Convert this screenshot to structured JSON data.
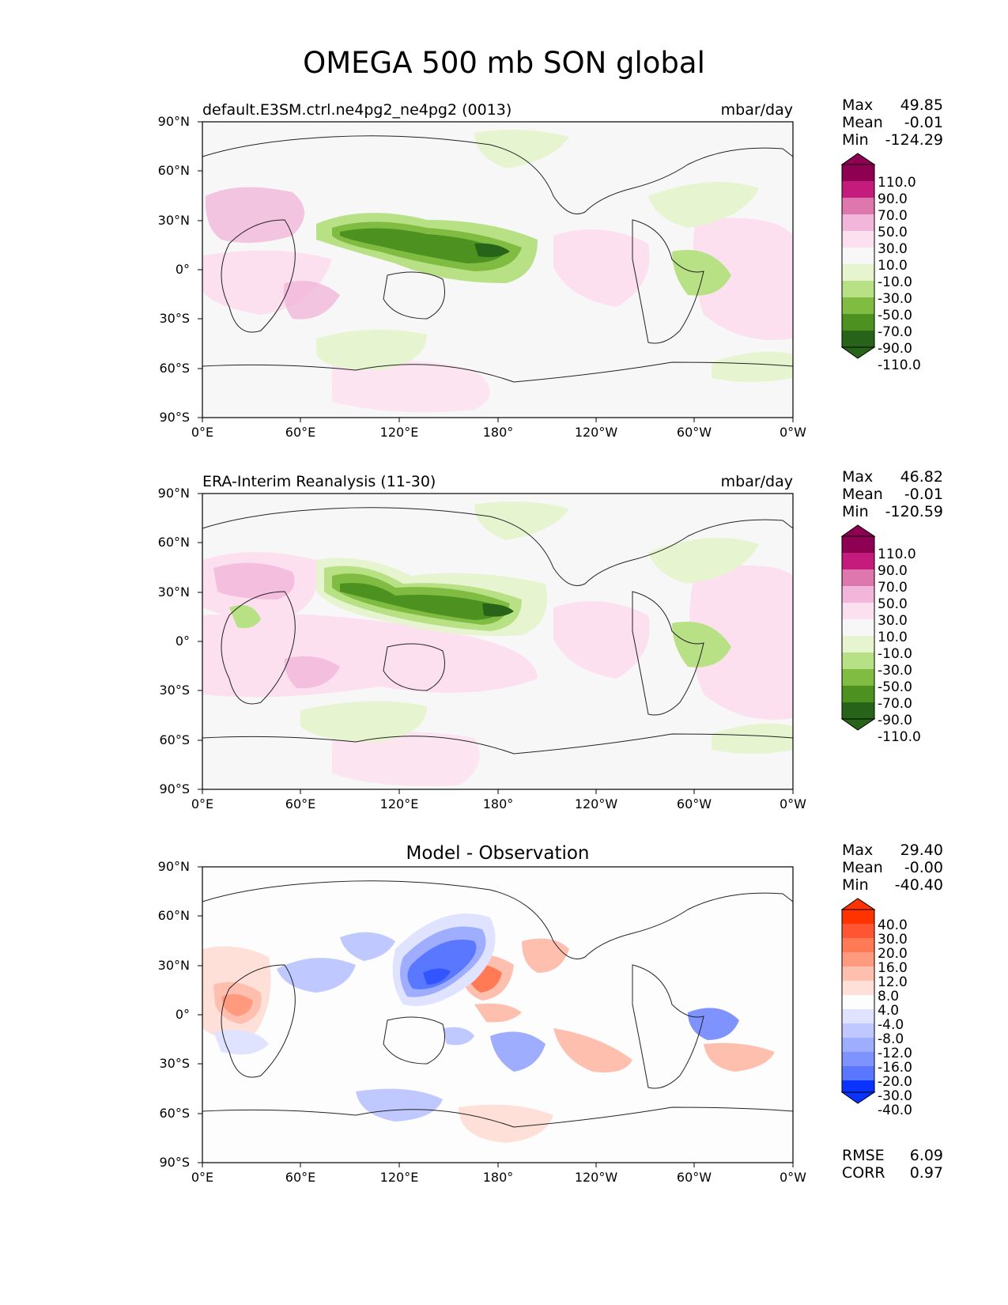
{
  "title": "OMEGA 500 mb SON global",
  "lat_ticks": [
    "90°N",
    "60°N",
    "30°N",
    "0°",
    "30°S",
    "60°S",
    "90°S"
  ],
  "lon_ticks": [
    "0°E",
    "60°E",
    "120°E",
    "180°",
    "120°W",
    "60°W",
    "0°W"
  ],
  "panels": [
    {
      "label_left": "default.E3SM.ctrl.ne4pg2_ne4pg2 (0013)",
      "label_right": "mbar/day",
      "label_center": "",
      "stats": [
        {
          "label": "Max",
          "value": "49.85"
        },
        {
          "label": "Mean",
          "value": "-0.01"
        },
        {
          "label": "Min",
          "value": "-124.29"
        }
      ],
      "colorbar": {
        "labels": [
          "110.0",
          "90.0",
          "70.0",
          "50.0",
          "30.0",
          "10.0",
          "-10.0",
          "-30.0",
          "-50.0",
          "-70.0",
          "-90.0",
          "-110.0"
        ],
        "colors": [
          "#8e0152",
          "#c51b7d",
          "#de77ae",
          "#f1b6da",
          "#fde0ef",
          "#f7f7f7",
          "#e6f5d0",
          "#b8e186",
          "#7fbc41",
          "#4d9221",
          "#276419"
        ]
      }
    },
    {
      "label_left": "ERA-Interim Reanalysis (11-30)",
      "label_right": "mbar/day",
      "label_center": "",
      "stats": [
        {
          "label": "Max",
          "value": "46.82"
        },
        {
          "label": "Mean",
          "value": "-0.01"
        },
        {
          "label": "Min",
          "value": "-120.59"
        }
      ],
      "colorbar": {
        "labels": [
          "110.0",
          "90.0",
          "70.0",
          "50.0",
          "30.0",
          "10.0",
          "-10.0",
          "-30.0",
          "-50.0",
          "-70.0",
          "-90.0",
          "-110.0"
        ],
        "colors": [
          "#8e0152",
          "#c51b7d",
          "#de77ae",
          "#f1b6da",
          "#fde0ef",
          "#f7f7f7",
          "#e6f5d0",
          "#b8e186",
          "#7fbc41",
          "#4d9221",
          "#276419"
        ]
      }
    },
    {
      "label_left": "",
      "label_right": "",
      "label_center": "Model - Observation",
      "stats": [
        {
          "label": "Max",
          "value": "29.40"
        },
        {
          "label": "Mean",
          "value": "-0.00"
        },
        {
          "label": "Min",
          "value": "-40.40"
        }
      ],
      "colorbar": {
        "labels": [
          "40.0",
          "30.0",
          "20.0",
          "16.0",
          "12.0",
          "8.0",
          "4.0",
          "-4.0",
          "-8.0",
          "-12.0",
          "-16.0",
          "-20.0",
          "-30.0",
          "-40.0"
        ],
        "colors": [
          "#ff3300",
          "#ff5533",
          "#ff7a55",
          "#ff9a7f",
          "#ffbfae",
          "#ffe0d8",
          "#fdfdfd",
          "#dfe3ff",
          "#bfc8ff",
          "#9fadff",
          "#7f93ff",
          "#5a78ff",
          "#3355ff",
          "#0a33ff"
        ]
      },
      "footer": [
        {
          "label": "RMSE",
          "value": "6.09"
        },
        {
          "label": "CORR",
          "value": "0.97"
        }
      ]
    }
  ]
}
